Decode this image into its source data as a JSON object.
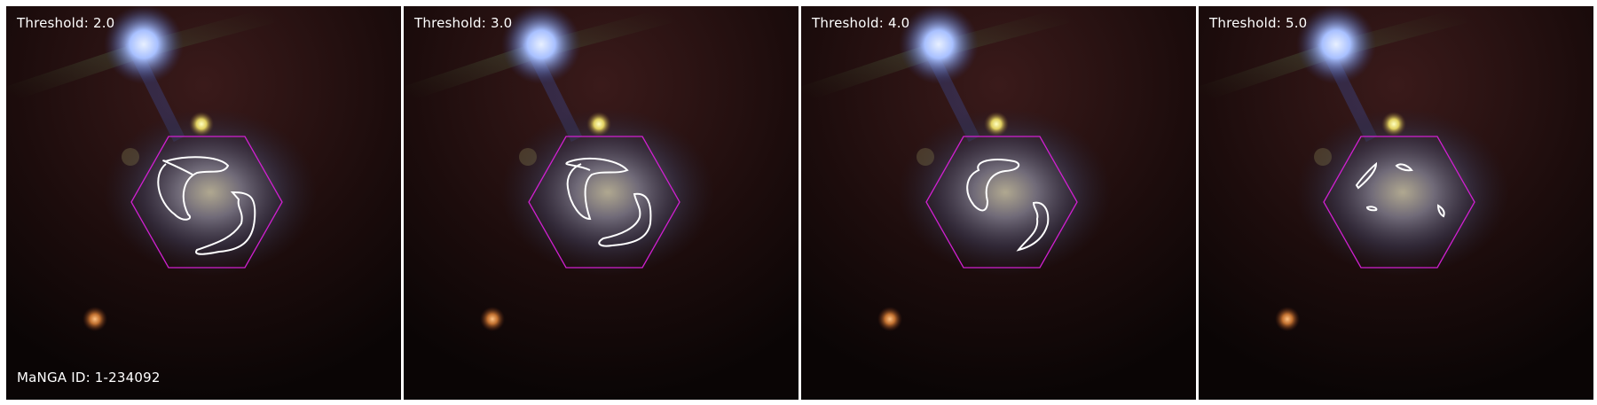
{
  "figure": {
    "panels": [
      {
        "threshold_label": "Threshold: 2.0",
        "threshold": 2.0
      },
      {
        "threshold_label": "Threshold: 3.0",
        "threshold": 3.0
      },
      {
        "threshold_label": "Threshold: 4.0",
        "threshold": 4.0
      },
      {
        "threshold_label": "Threshold: 5.0",
        "threshold": 5.0
      }
    ],
    "manga_id_label": "MaNGA ID: 1-234092"
  },
  "colors": {
    "ifu_hexagon": "#d020d0",
    "contour": "#ffffff",
    "label_text": "#ffffff",
    "background": "#0a0505"
  }
}
